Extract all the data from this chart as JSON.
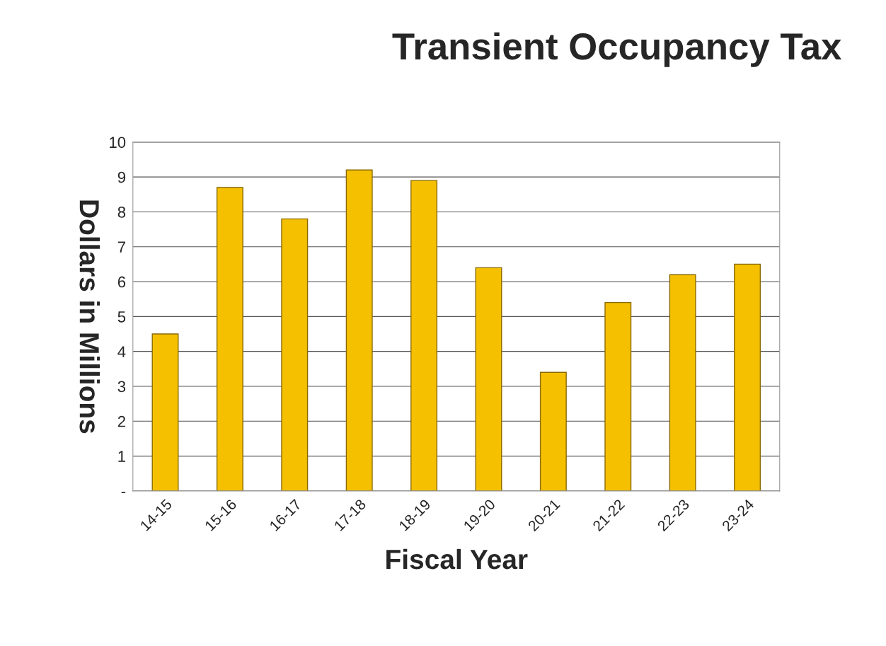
{
  "chart_data": {
    "type": "bar",
    "title": "Transient Occupancy Tax",
    "xlabel": "Fiscal Year",
    "ylabel": "Dollars in Millions",
    "categories": [
      "14-15",
      "15-16",
      "16-17",
      "17-18",
      "18-19",
      "19-20",
      "20-21",
      "21-22",
      "22-23",
      "23-24"
    ],
    "values": [
      4.5,
      8.7,
      7.8,
      9.2,
      8.9,
      6.4,
      3.4,
      5.4,
      6.2,
      6.5
    ],
    "color": "#f5c000",
    "ylim": [
      0,
      10
    ],
    "yticks": [
      {
        "value": 0,
        "label": "-"
      },
      1,
      2,
      3,
      4,
      5,
      6,
      7,
      8,
      9,
      10
    ],
    "grid": "y"
  }
}
